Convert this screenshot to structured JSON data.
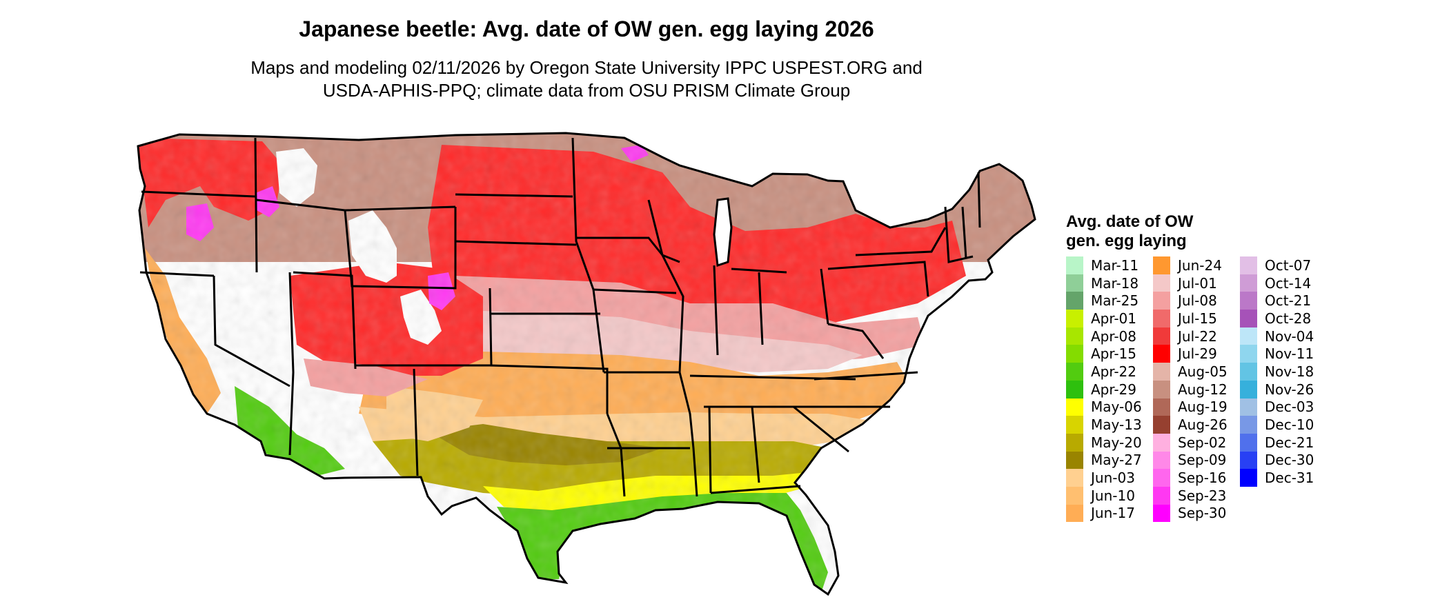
{
  "title": "Japanese beetle: Avg. date of OW gen. egg laying 2026",
  "subtitle_line1": "Maps and modeling 02/11/2026 by Oregon State University IPPC USPEST.ORG and",
  "subtitle_line2": "USDA-APHIS-PPQ; climate data from OSU PRISM Climate Group",
  "legend": {
    "title_line1": "Avg. date of OW",
    "title_line2": "gen. egg laying",
    "columns": [
      [
        {
          "label": "Mar-11",
          "color": "#b8f5c8"
        },
        {
          "label": "Mar-18",
          "color": "#8fcf98"
        },
        {
          "label": "Mar-25",
          "color": "#64a46a"
        },
        {
          "label": "Apr-01",
          "color": "#c8f000"
        },
        {
          "label": "Apr-08",
          "color": "#a8e600"
        },
        {
          "label": "Apr-15",
          "color": "#84dc00"
        },
        {
          "label": "Apr-22",
          "color": "#52cc10"
        },
        {
          "label": "Apr-29",
          "color": "#2ec00e"
        },
        {
          "label": "May-06",
          "color": "#ffff00"
        },
        {
          "label": "May-13",
          "color": "#d8d400"
        },
        {
          "label": "May-20",
          "color": "#b8aa00"
        },
        {
          "label": "May-27",
          "color": "#998400"
        },
        {
          "label": "Jun-03",
          "color": "#ffd090"
        },
        {
          "label": "Jun-10",
          "color": "#ffbf70"
        },
        {
          "label": "Jun-17",
          "color": "#ffad55"
        }
      ],
      [
        {
          "label": "Jun-24",
          "color": "#ff9830"
        },
        {
          "label": "Jul-01",
          "color": "#f4c8c8"
        },
        {
          "label": "Jul-08",
          "color": "#f4a0a0"
        },
        {
          "label": "Jul-15",
          "color": "#f06a6a"
        },
        {
          "label": "Jul-22",
          "color": "#f03a3a"
        },
        {
          "label": "Jul-29",
          "color": "#ff0000"
        },
        {
          "label": "Aug-05",
          "color": "#e4b4a8"
        },
        {
          "label": "Aug-12",
          "color": "#c89080"
        },
        {
          "label": "Aug-19",
          "color": "#b06858"
        },
        {
          "label": "Aug-26",
          "color": "#964030"
        },
        {
          "label": "Sep-02",
          "color": "#ffb0e0"
        },
        {
          "label": "Sep-09",
          "color": "#ff88e8"
        },
        {
          "label": "Sep-16",
          "color": "#ff66ee"
        },
        {
          "label": "Sep-23",
          "color": "#ff38f2"
        },
        {
          "label": "Sep-30",
          "color": "#ff00ff"
        }
      ],
      [
        {
          "label": "Oct-07",
          "color": "#e2bfe6"
        },
        {
          "label": "Oct-14",
          "color": "#cf9cd6"
        },
        {
          "label": "Oct-21",
          "color": "#bb78c8"
        },
        {
          "label": "Oct-28",
          "color": "#a652b8"
        },
        {
          "label": "Nov-04",
          "color": "#bde6f8"
        },
        {
          "label": "Nov-11",
          "color": "#8fd6ee"
        },
        {
          "label": "Nov-18",
          "color": "#62c4e4"
        },
        {
          "label": "Nov-26",
          "color": "#36b0dc"
        },
        {
          "label": "Dec-03",
          "color": "#a0c0e4"
        },
        {
          "label": "Dec-10",
          "color": "#7898e6"
        },
        {
          "label": "Dec-21",
          "color": "#5070ec"
        },
        {
          "label": "Dec-30",
          "color": "#2840f4"
        },
        {
          "label": "Dec-31",
          "color": "#0000ff"
        }
      ]
    ]
  },
  "map_band_colors": {
    "north": "#ff2a2a",
    "north_brown": "#c89080",
    "mid_pink": "#f4c8c8",
    "pink2": "#f4a0a0",
    "orange": "#ffad55",
    "light_orange": "#ffd090",
    "olive": "#b8aa00",
    "dark_olive": "#998400",
    "yellow": "#ffff00",
    "green": "#52cc10",
    "mountain_white": "#ffffff",
    "mountain_magenta": "#ff38f2"
  }
}
